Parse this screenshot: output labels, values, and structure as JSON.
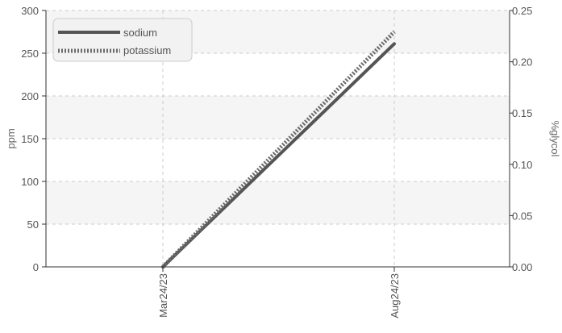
{
  "chart_data": {
    "type": "line",
    "x": [
      "Mar24/23",
      "Aug24/23"
    ],
    "series": [
      {
        "name": "sodium",
        "values": [
          0,
          261
        ],
        "axis": "left",
        "style": "solid"
      },
      {
        "name": "potassium",
        "values": [
          0,
          275
        ],
        "axis": "left",
        "style": "dotted"
      }
    ],
    "ylabel": "ppm",
    "y2label": "%glycol",
    "ylim": [
      0,
      300
    ],
    "y2lim": [
      0,
      0.25
    ],
    "yticks": [
      "0",
      "50",
      "100",
      "150",
      "200",
      "250",
      "300"
    ],
    "y2ticks": [
      "0.00",
      "0.05",
      "0.10",
      "0.15",
      "0.20",
      "0.25"
    ],
    "grid": true,
    "legend_position": "top-left",
    "colors": {
      "sodium": "#555555",
      "potassium": "#6b6b6b",
      "band": "#f5f5f5",
      "grid": "#cccccc",
      "axis": "#333333"
    }
  }
}
